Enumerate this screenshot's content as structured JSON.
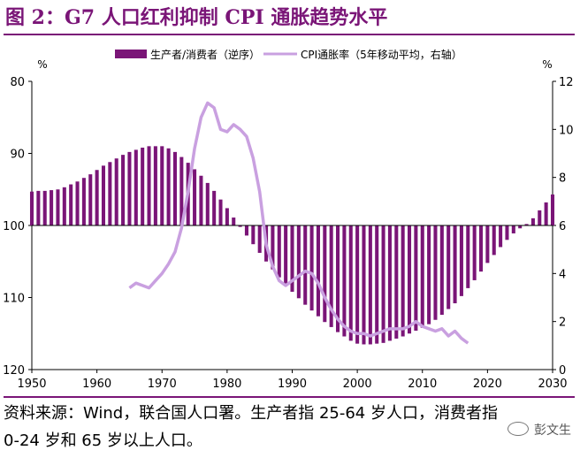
{
  "title": "图 2：G7 人口红利抑制 CPI 通胀趋势水平",
  "note": "资料来源：Wind，联合国人口署。生产者指 25-64 岁人口，消费者指 0-24 岁和 65 岁以上人口。",
  "watermark": "彭文生",
  "colors": {
    "bar": "#7a1577",
    "line": "#c9a0e0",
    "title": "#7a1577"
  },
  "chart_data": {
    "type": "bar",
    "left_unit": "%",
    "right_unit": "%",
    "left_axis": {
      "ticks": [
        80,
        90,
        100,
        110,
        120
      ],
      "range": [
        80,
        120
      ],
      "inverted": true
    },
    "right_axis": {
      "ticks": [
        0,
        2,
        4,
        6,
        8,
        10,
        12
      ],
      "range": [
        0,
        12
      ]
    },
    "x_axis": {
      "ticks": [
        1950,
        1960,
        1970,
        1980,
        1990,
        2000,
        2010,
        2020,
        2030
      ],
      "range": [
        1950,
        2030
      ]
    },
    "legend": {
      "placement": "top",
      "items": [
        {
          "name": "生产者/消费者（逆序）",
          "kind": "bar"
        },
        {
          "name": "CPI通胀率（5年移动平均，右轴）",
          "kind": "line"
        }
      ]
    },
    "series": [
      {
        "name": "生产者/消费者（逆序）",
        "axis": "left",
        "x": [
          1950,
          1951,
          1952,
          1953,
          1954,
          1955,
          1956,
          1957,
          1958,
          1959,
          1960,
          1961,
          1962,
          1963,
          1964,
          1965,
          1966,
          1967,
          1968,
          1969,
          1970,
          1971,
          1972,
          1973,
          1974,
          1975,
          1976,
          1977,
          1978,
          1979,
          1980,
          1981,
          1982,
          1983,
          1984,
          1985,
          1986,
          1987,
          1988,
          1989,
          1990,
          1991,
          1992,
          1993,
          1994,
          1995,
          1996,
          1997,
          1998,
          1999,
          2000,
          2001,
          2002,
          2003,
          2004,
          2005,
          2006,
          2007,
          2008,
          2009,
          2010,
          2011,
          2012,
          2013,
          2014,
          2015,
          2016,
          2017,
          2018,
          2019,
          2020,
          2021,
          2022,
          2023,
          2024,
          2025,
          2026,
          2027,
          2028,
          2029,
          2030
        ],
        "values": [
          95.3,
          95.2,
          95.2,
          95.1,
          95.0,
          94.7,
          94.3,
          93.9,
          93.4,
          92.9,
          92.3,
          91.7,
          91.2,
          90.7,
          90.2,
          89.8,
          89.5,
          89.2,
          89.0,
          89.0,
          89.0,
          89.3,
          89.8,
          90.5,
          91.3,
          92.2,
          93.1,
          94.1,
          95.2,
          96.4,
          97.6,
          98.9,
          100.2,
          101.4,
          102.6,
          103.8,
          105.0,
          106.1,
          107.2,
          108.2,
          109.2,
          110.1,
          111.0,
          111.8,
          112.6,
          113.4,
          114.1,
          114.8,
          115.4,
          116.0,
          116.4,
          116.5,
          116.5,
          116.4,
          116.3,
          116.0,
          115.7,
          115.4,
          115.0,
          114.6,
          114.2,
          113.7,
          113.1,
          112.4,
          111.6,
          110.8,
          109.8,
          108.7,
          107.6,
          106.4,
          105.2,
          104.1,
          103.0,
          102.0,
          101.1,
          100.4,
          99.8,
          99.0,
          97.9,
          96.8,
          95.7
        ]
      },
      {
        "name": "CPI通胀率（5年移动平均，右轴）",
        "axis": "right",
        "x": [
          1965,
          1966,
          1967,
          1968,
          1969,
          1970,
          1971,
          1972,
          1973,
          1974,
          1975,
          1976,
          1977,
          1978,
          1979,
          1980,
          1981,
          1982,
          1983,
          1984,
          1985,
          1986,
          1987,
          1988,
          1989,
          1990,
          1991,
          1992,
          1993,
          1994,
          1995,
          1996,
          1997,
          1998,
          1999,
          2000,
          2001,
          2002,
          2003,
          2004,
          2005,
          2006,
          2007,
          2008,
          2009,
          2010,
          2011,
          2012,
          2013,
          2014,
          2015,
          2016,
          2017
        ],
        "values": [
          3.4,
          3.6,
          3.5,
          3.4,
          3.7,
          4.0,
          4.4,
          4.9,
          5.9,
          7.4,
          9.2,
          10.5,
          11.1,
          10.9,
          10.0,
          9.9,
          10.2,
          10.0,
          9.7,
          8.8,
          7.4,
          5.2,
          4.3,
          3.7,
          3.5,
          3.7,
          3.9,
          4.1,
          4.0,
          3.6,
          3.0,
          2.5,
          2.1,
          1.8,
          1.6,
          1.5,
          1.5,
          1.4,
          1.5,
          1.6,
          1.7,
          1.7,
          1.7,
          1.8,
          2.0,
          1.8,
          1.7,
          1.6,
          1.7,
          1.4,
          1.6,
          1.3,
          1.1
        ]
      }
    ]
  }
}
